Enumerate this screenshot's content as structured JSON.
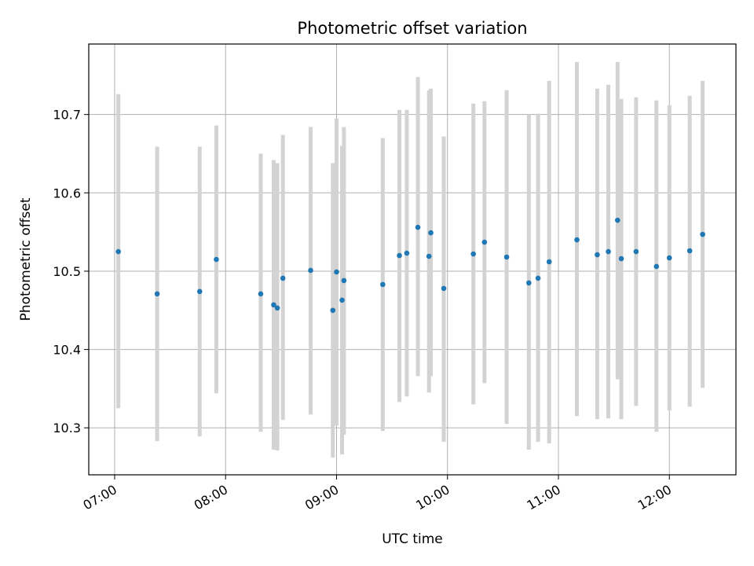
{
  "chart_data": {
    "type": "scatter",
    "title": "Photometric offset variation",
    "xlabel": "UTC time",
    "ylabel": "Photometric offset",
    "x_ticks": [
      "07:00",
      "08:00",
      "09:00",
      "10:00",
      "11:00",
      "12:00"
    ],
    "y_ticks": [
      "10.3",
      "10.4",
      "10.5",
      "10.6",
      "10.7"
    ],
    "xlim": [
      "06:46",
      "12:36"
    ],
    "ylim": [
      10.24,
      10.79
    ],
    "grid": true,
    "marker_color": "#1f77b4",
    "errorbar_color": "#d3d3d3",
    "points": [
      {
        "t": "07:02",
        "y": 10.525,
        "lo": 10.325,
        "hi": 10.726
      },
      {
        "t": "07:23",
        "y": 10.471,
        "lo": 10.283,
        "hi": 10.659
      },
      {
        "t": "07:46",
        "y": 10.474,
        "lo": 10.289,
        "hi": 10.659
      },
      {
        "t": "07:55",
        "y": 10.515,
        "lo": 10.344,
        "hi": 10.686
      },
      {
        "t": "08:19",
        "y": 10.471,
        "lo": 10.295,
        "hi": 10.65
      },
      {
        "t": "08:26",
        "y": 10.457,
        "lo": 10.272,
        "hi": 10.642
      },
      {
        "t": "08:28",
        "y": 10.453,
        "lo": 10.271,
        "hi": 10.638
      },
      {
        "t": "08:31",
        "y": 10.491,
        "lo": 10.31,
        "hi": 10.674
      },
      {
        "t": "08:46",
        "y": 10.501,
        "lo": 10.317,
        "hi": 10.684
      },
      {
        "t": "08:58",
        "y": 10.45,
        "lo": 10.262,
        "hi": 10.638
      },
      {
        "t": "09:00",
        "y": 10.499,
        "lo": 10.303,
        "hi": 10.695
      },
      {
        "t": "09:03",
        "y": 10.463,
        "lo": 10.266,
        "hi": 10.66
      },
      {
        "t": "09:04",
        "y": 10.488,
        "lo": 10.291,
        "hi": 10.684
      },
      {
        "t": "09:25",
        "y": 10.483,
        "lo": 10.296,
        "hi": 10.67
      },
      {
        "t": "09:34",
        "y": 10.52,
        "lo": 10.333,
        "hi": 10.706
      },
      {
        "t": "09:38",
        "y": 10.523,
        "lo": 10.34,
        "hi": 10.706
      },
      {
        "t": "09:44",
        "y": 10.556,
        "lo": 10.366,
        "hi": 10.748
      },
      {
        "t": "09:50",
        "y": 10.519,
        "lo": 10.345,
        "hi": 10.731
      },
      {
        "t": "09:51",
        "y": 10.549,
        "lo": 10.366,
        "hi": 10.733
      },
      {
        "t": "09:58",
        "y": 10.478,
        "lo": 10.282,
        "hi": 10.672
      },
      {
        "t": "10:14",
        "y": 10.522,
        "lo": 10.33,
        "hi": 10.714
      },
      {
        "t": "10:20",
        "y": 10.537,
        "lo": 10.357,
        "hi": 10.717
      },
      {
        "t": "10:32",
        "y": 10.518,
        "lo": 10.305,
        "hi": 10.731
      },
      {
        "t": "10:44",
        "y": 10.485,
        "lo": 10.272,
        "hi": 10.7
      },
      {
        "t": "10:49",
        "y": 10.491,
        "lo": 10.282,
        "hi": 10.701
      },
      {
        "t": "10:55",
        "y": 10.512,
        "lo": 10.28,
        "hi": 10.743
      },
      {
        "t": "11:10",
        "y": 10.54,
        "lo": 10.315,
        "hi": 10.767
      },
      {
        "t": "11:21",
        "y": 10.521,
        "lo": 10.311,
        "hi": 10.733
      },
      {
        "t": "11:27",
        "y": 10.525,
        "lo": 10.312,
        "hi": 10.738
      },
      {
        "t": "11:32",
        "y": 10.565,
        "lo": 10.362,
        "hi": 10.767
      },
      {
        "t": "11:34",
        "y": 10.516,
        "lo": 10.311,
        "hi": 10.72
      },
      {
        "t": "11:42",
        "y": 10.525,
        "lo": 10.328,
        "hi": 10.722
      },
      {
        "t": "11:53",
        "y": 10.506,
        "lo": 10.295,
        "hi": 10.718
      },
      {
        "t": "12:00",
        "y": 10.517,
        "lo": 10.322,
        "hi": 10.712
      },
      {
        "t": "12:11",
        "y": 10.526,
        "lo": 10.327,
        "hi": 10.724
      },
      {
        "t": "12:18",
        "y": 10.547,
        "lo": 10.351,
        "hi": 10.743
      }
    ]
  }
}
